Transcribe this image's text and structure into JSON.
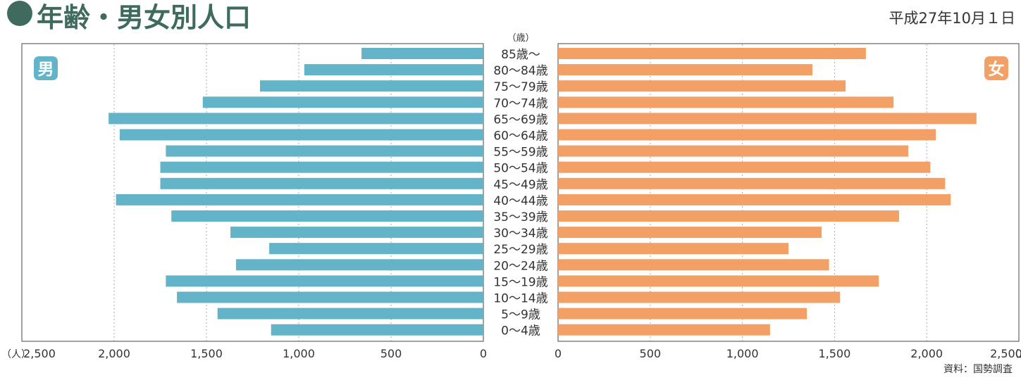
{
  "header": {
    "title": "年齢・男女別人口",
    "date": "平成27年10月１日"
  },
  "source": "資料：国勢調査",
  "colors": {
    "male": "#63b4c8",
    "female": "#f2a065",
    "title": "#3f6b5e",
    "grid": "#aaaaaa"
  },
  "chart_data": {
    "type": "bar",
    "orientation": "horizontal-pyramid",
    "age_unit_label": "（歳）",
    "categories": [
      "85歳〜",
      "80〜84歳",
      "75〜79歳",
      "70〜74歳",
      "65〜69歳",
      "60〜64歳",
      "55〜59歳",
      "50〜54歳",
      "45〜49歳",
      "40〜44歳",
      "35〜39歳",
      "30〜34歳",
      "25〜29歳",
      "20〜24歳",
      "15〜19歳",
      "10〜14歳",
      "5〜9歳",
      "0〜4歳"
    ],
    "series": [
      {
        "name": "男",
        "values": [
          660,
          970,
          1210,
          1520,
          2030,
          1970,
          1720,
          1750,
          1750,
          1990,
          1690,
          1370,
          1160,
          1340,
          1720,
          1660,
          1440,
          1150
        ]
      },
      {
        "name": "女",
        "values": [
          1670,
          1380,
          1560,
          1820,
          2270,
          2050,
          1900,
          2020,
          2100,
          2130,
          1850,
          1430,
          1250,
          1470,
          1740,
          1530,
          1350,
          1150
        ]
      }
    ],
    "xlim": [
      0,
      2500
    ],
    "male_ticks": [
      "2,500",
      "2,000",
      "1,500",
      "1,000",
      "500",
      "0"
    ],
    "female_ticks": [
      "0",
      "500",
      "1,000",
      "1,500",
      "2,000",
      "2,500"
    ],
    "unit_label": "（人）",
    "grid": true
  }
}
